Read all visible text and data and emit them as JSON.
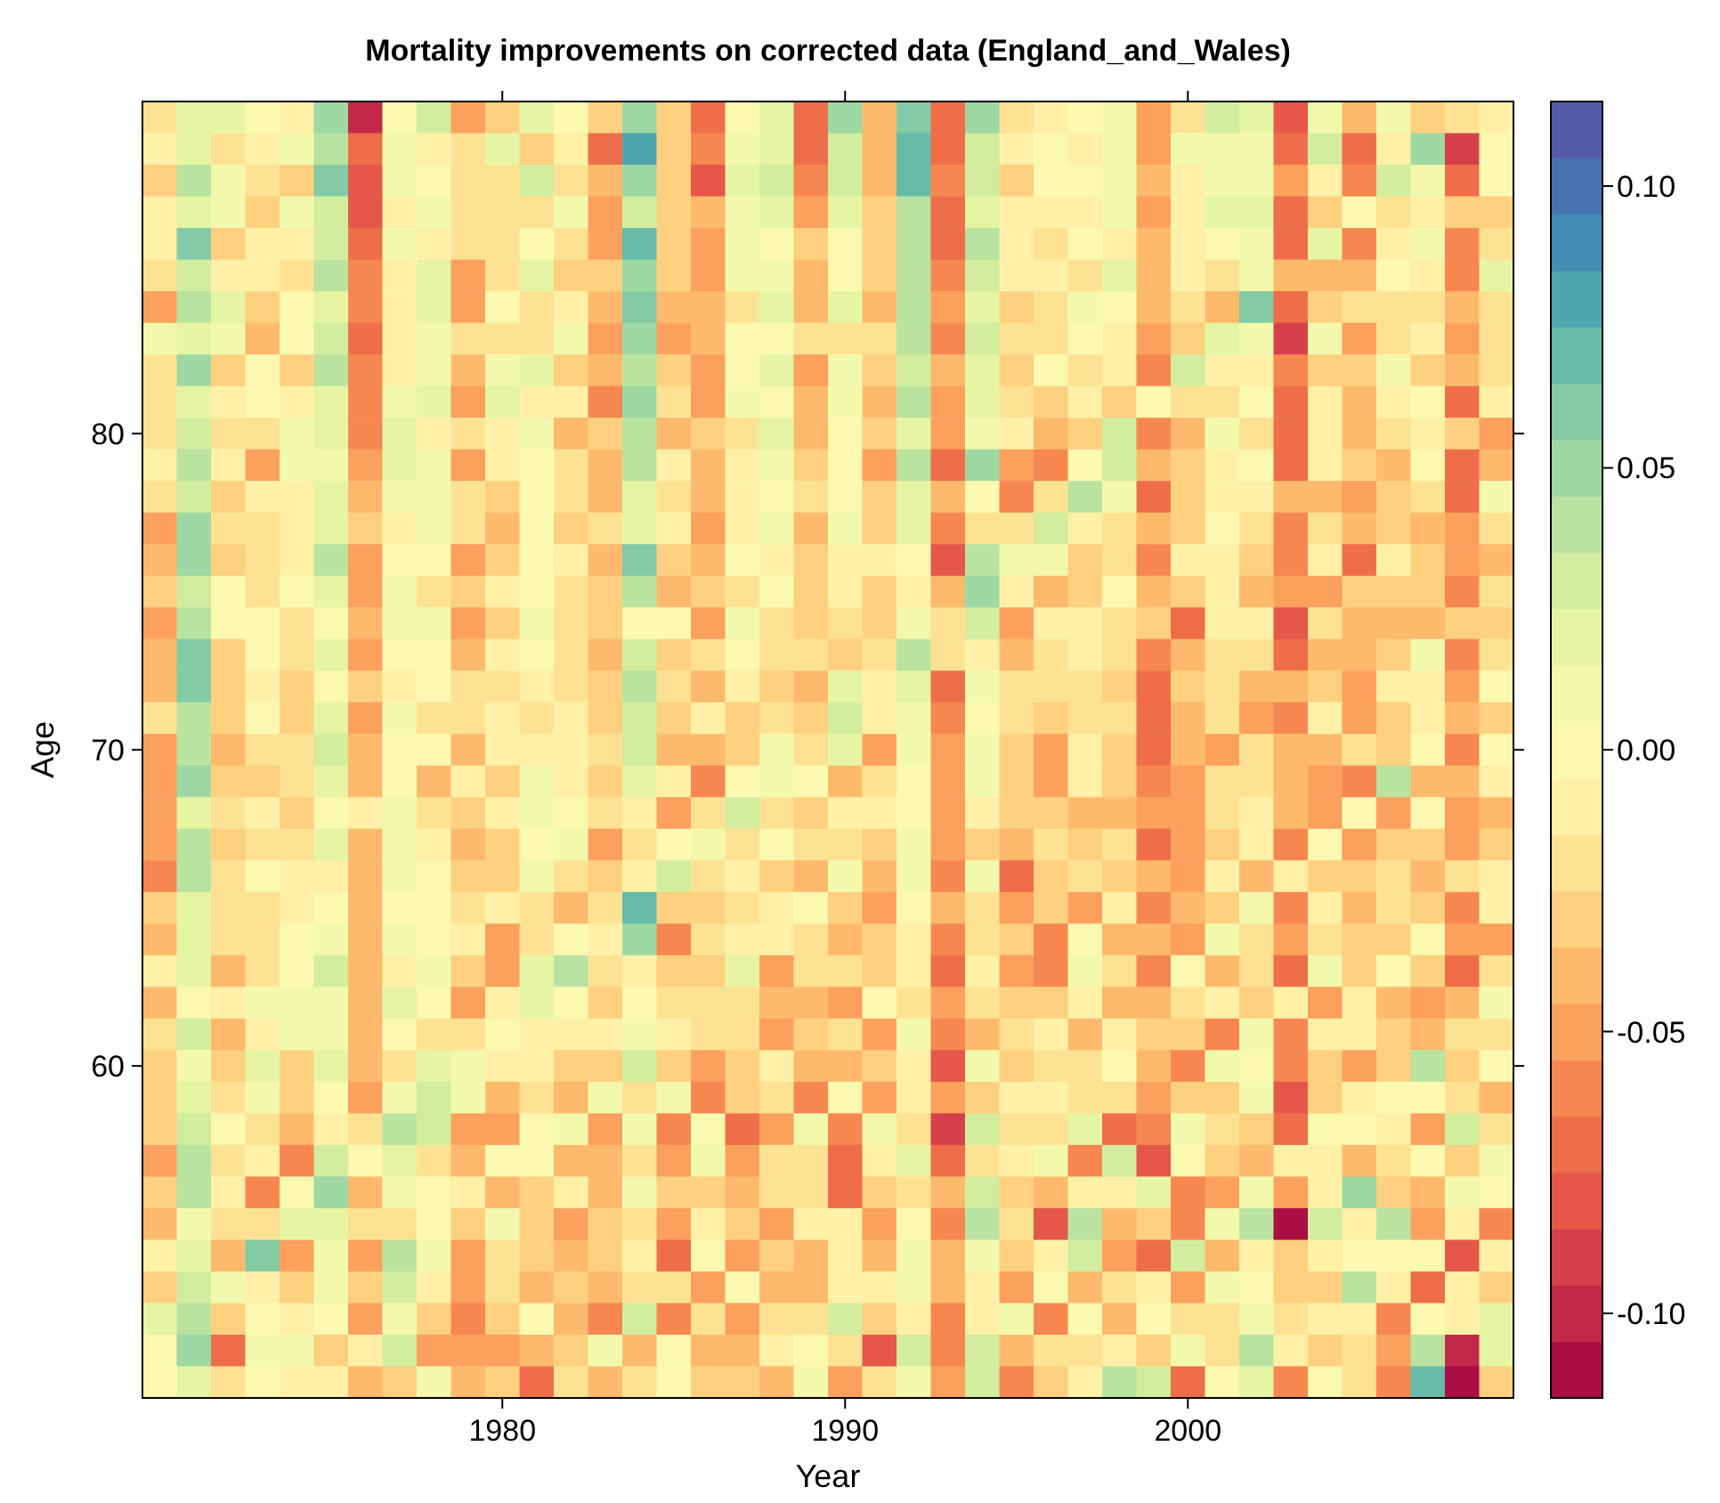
{
  "chart_data": {
    "type": "heatmap",
    "title": "Mortality improvements on corrected data (England_and_Wales)",
    "xlabel": "Year",
    "ylabel": "Age",
    "categories": [
      null,
      null,
      null,
      null,
      null,
      null,
      null,
      null,
      null,
      null,
      "1980",
      null,
      null,
      null,
      null,
      null,
      null,
      null,
      null,
      null,
      "1990",
      null,
      null,
      null,
      null,
      null,
      null,
      null,
      null,
      null,
      "2000",
      null,
      null,
      null,
      null,
      null,
      null,
      null,
      null,
      null
    ],
    "y_categories": [
      null,
      null,
      null,
      null,
      null,
      null,
      null,
      null,
      null,
      null,
      "80",
      null,
      null,
      null,
      null,
      null,
      null,
      null,
      null,
      null,
      "70",
      null,
      null,
      null,
      null,
      null,
      null,
      null,
      null,
      null,
      "60",
      null,
      null,
      null,
      null,
      null,
      null,
      null,
      null,
      null,
      null
    ],
    "clim": [
      -0.115,
      0.115
    ],
    "cticks": [
      {
        "value": -0.1,
        "label": "-0.10"
      },
      {
        "value": -0.05,
        "label": "-0.05"
      },
      {
        "value": 0,
        "label": "0.00"
      },
      {
        "value": 0.05,
        "label": "0.05"
      },
      {
        "value": 0.1,
        "label": "0.10"
      }
    ],
    "cells": [
      [
        -0.02,
        0.02,
        0.02,
        0.0,
        -0.01,
        0.05,
        -0.1,
        0.0,
        0.03,
        -0.05,
        -0.03,
        0.02,
        0.0,
        -0.03,
        0.05,
        -0.03,
        -0.07,
        0.0,
        0.02,
        -0.07,
        0.05,
        -0.04,
        0.06,
        -0.07,
        0.05,
        -0.02,
        -0.01,
        0.0,
        0.01,
        -0.05,
        -0.02,
        0.03,
        0.02,
        -0.08,
        0.01,
        -0.04,
        0.01,
        -0.03,
        -0.02,
        -0.01
      ],
      [
        -0.01,
        0.02,
        -0.02,
        -0.01,
        0.01,
        0.04,
        -0.07,
        0.01,
        -0.01,
        -0.02,
        0.02,
        -0.03,
        -0.01,
        -0.07,
        0.08,
        -0.03,
        -0.06,
        0.01,
        0.02,
        -0.07,
        0.03,
        -0.04,
        0.07,
        -0.07,
        0.03,
        -0.01,
        0.0,
        -0.01,
        0.01,
        -0.05,
        0.01,
        0.01,
        0.01,
        -0.07,
        0.03,
        -0.07,
        -0.01,
        0.05,
        -0.09,
        0.0
      ],
      [
        -0.03,
        0.04,
        0.01,
        -0.02,
        -0.03,
        0.06,
        -0.08,
        0.01,
        0.0,
        -0.02,
        -0.02,
        0.03,
        -0.02,
        -0.04,
        0.05,
        -0.03,
        -0.08,
        0.02,
        0.03,
        -0.06,
        0.03,
        -0.04,
        0.07,
        -0.06,
        0.03,
        -0.03,
        0.0,
        0.0,
        0.01,
        -0.04,
        -0.01,
        0.01,
        0.01,
        -0.05,
        -0.01,
        -0.06,
        0.03,
        0.01,
        -0.07,
        0.0
      ],
      [
        -0.01,
        0.02,
        0.01,
        -0.03,
        0.01,
        0.03,
        -0.08,
        -0.01,
        0.01,
        -0.02,
        -0.02,
        -0.02,
        0.01,
        -0.05,
        0.03,
        -0.03,
        -0.04,
        0.01,
        0.02,
        -0.05,
        0.02,
        -0.03,
        0.04,
        -0.07,
        0.02,
        -0.01,
        -0.01,
        -0.01,
        0.01,
        -0.05,
        -0.01,
        0.02,
        0.02,
        -0.07,
        -0.03,
        0.0,
        -0.02,
        -0.01,
        -0.03,
        -0.03
      ],
      [
        -0.01,
        0.06,
        -0.03,
        -0.01,
        -0.01,
        0.03,
        -0.07,
        0.01,
        -0.01,
        -0.02,
        -0.02,
        0.0,
        -0.02,
        -0.05,
        0.07,
        -0.03,
        -0.05,
        0.01,
        0.0,
        -0.03,
        0.0,
        -0.03,
        0.04,
        -0.07,
        0.04,
        -0.01,
        -0.02,
        0.0,
        -0.01,
        -0.04,
        -0.01,
        0.0,
        0.01,
        -0.07,
        0.02,
        -0.06,
        -0.01,
        0.01,
        -0.06,
        -0.02
      ],
      [
        -0.02,
        0.03,
        -0.01,
        -0.01,
        -0.02,
        0.04,
        -0.06,
        -0.01,
        0.02,
        -0.05,
        -0.02,
        0.02,
        -0.03,
        -0.03,
        0.05,
        -0.03,
        -0.05,
        0.01,
        0.01,
        -0.04,
        0.0,
        -0.03,
        0.04,
        -0.06,
        0.03,
        -0.01,
        -0.01,
        -0.02,
        0.02,
        -0.04,
        -0.01,
        -0.02,
        0.01,
        -0.04,
        -0.04,
        -0.04,
        0.0,
        -0.01,
        -0.06,
        0.02
      ],
      [
        -0.05,
        0.04,
        0.02,
        -0.03,
        0.0,
        0.02,
        -0.06,
        -0.01,
        0.02,
        -0.05,
        0.0,
        -0.02,
        -0.01,
        -0.04,
        0.06,
        -0.04,
        -0.04,
        -0.02,
        0.02,
        -0.04,
        0.02,
        -0.04,
        0.04,
        -0.05,
        0.02,
        -0.03,
        -0.02,
        0.01,
        0.0,
        -0.04,
        -0.02,
        -0.04,
        0.06,
        -0.07,
        -0.03,
        -0.02,
        -0.02,
        -0.02,
        -0.04,
        -0.02
      ],
      [
        0.01,
        0.02,
        0.01,
        -0.04,
        0.0,
        0.03,
        -0.07,
        -0.01,
        0.01,
        -0.02,
        -0.02,
        -0.02,
        0.01,
        -0.05,
        0.05,
        -0.05,
        -0.04,
        0.0,
        0.0,
        -0.02,
        -0.02,
        -0.02,
        0.04,
        -0.06,
        0.03,
        -0.02,
        -0.02,
        0.0,
        -0.01,
        -0.05,
        -0.03,
        0.02,
        0.01,
        -0.09,
        0.01,
        -0.05,
        -0.02,
        -0.01,
        -0.05,
        -0.02
      ],
      [
        -0.02,
        0.05,
        -0.03,
        0.0,
        -0.03,
        0.04,
        -0.06,
        -0.01,
        0.01,
        -0.04,
        0.01,
        0.02,
        -0.03,
        -0.04,
        0.04,
        -0.03,
        -0.05,
        0.0,
        0.02,
        -0.05,
        0.01,
        -0.03,
        0.03,
        -0.04,
        0.02,
        -0.03,
        0.0,
        -0.02,
        -0.01,
        -0.06,
        0.03,
        -0.01,
        -0.01,
        -0.06,
        -0.03,
        -0.03,
        0.01,
        -0.03,
        -0.04,
        -0.02
      ],
      [
        -0.02,
        0.02,
        -0.01,
        0.0,
        -0.01,
        0.02,
        -0.06,
        0.01,
        0.02,
        -0.05,
        0.02,
        -0.01,
        -0.01,
        -0.06,
        0.05,
        -0.02,
        -0.05,
        0.01,
        0.0,
        -0.04,
        0.01,
        -0.04,
        0.04,
        -0.05,
        0.02,
        -0.02,
        -0.03,
        -0.01,
        -0.03,
        0.0,
        -0.02,
        -0.02,
        0.0,
        -0.07,
        -0.01,
        -0.04,
        -0.01,
        0.0,
        -0.07,
        -0.01
      ],
      [
        -0.02,
        0.03,
        -0.02,
        -0.02,
        0.01,
        0.02,
        -0.06,
        0.02,
        -0.01,
        -0.02,
        -0.01,
        0.01,
        -0.04,
        -0.03,
        0.04,
        -0.04,
        -0.03,
        -0.02,
        0.02,
        -0.04,
        0.0,
        -0.03,
        0.02,
        -0.05,
        0.01,
        -0.01,
        -0.04,
        -0.03,
        0.03,
        -0.06,
        -0.04,
        0.01,
        -0.02,
        -0.07,
        -0.01,
        -0.04,
        -0.02,
        -0.01,
        -0.03,
        -0.05
      ],
      [
        -0.01,
        0.04,
        -0.01,
        -0.05,
        0.01,
        0.01,
        -0.05,
        0.02,
        0.01,
        -0.05,
        -0.01,
        0.0,
        -0.02,
        -0.04,
        0.04,
        -0.01,
        -0.04,
        -0.01,
        0.01,
        -0.03,
        0.0,
        -0.05,
        0.04,
        -0.07,
        0.05,
        -0.05,
        -0.06,
        0.0,
        0.03,
        -0.04,
        -0.03,
        -0.01,
        0.0,
        -0.07,
        -0.01,
        -0.03,
        -0.04,
        0.0,
        -0.07,
        -0.04
      ],
      [
        -0.02,
        0.03,
        -0.03,
        -0.01,
        -0.01,
        0.02,
        -0.04,
        0.01,
        0.01,
        -0.02,
        -0.03,
        0.0,
        -0.02,
        -0.04,
        0.02,
        -0.02,
        -0.04,
        -0.01,
        0.0,
        -0.02,
        0.0,
        -0.03,
        0.02,
        -0.04,
        0.0,
        -0.06,
        -0.02,
        0.04,
        0.01,
        -0.07,
        -0.03,
        -0.01,
        -0.01,
        -0.04,
        -0.04,
        -0.05,
        -0.03,
        -0.02,
        -0.07,
        0.01
      ],
      [
        -0.05,
        0.05,
        -0.02,
        -0.02,
        -0.01,
        0.02,
        -0.03,
        -0.01,
        0.01,
        -0.02,
        -0.04,
        0.0,
        -0.03,
        -0.02,
        0.02,
        -0.01,
        -0.05,
        -0.01,
        0.01,
        -0.04,
        0.01,
        -0.03,
        0.02,
        -0.06,
        -0.02,
        -0.02,
        0.03,
        -0.01,
        -0.02,
        -0.04,
        -0.03,
        0.0,
        -0.02,
        -0.06,
        -0.02,
        -0.04,
        -0.03,
        -0.04,
        -0.05,
        -0.02
      ],
      [
        -0.04,
        0.05,
        -0.03,
        -0.02,
        -0.01,
        0.04,
        -0.05,
        0.0,
        0.0,
        -0.05,
        -0.03,
        0.0,
        -0.01,
        -0.04,
        0.06,
        -0.03,
        -0.04,
        0.0,
        -0.01,
        -0.03,
        -0.01,
        -0.01,
        0.0,
        -0.08,
        0.04,
        0.01,
        0.01,
        -0.03,
        -0.02,
        -0.06,
        -0.01,
        -0.01,
        -0.03,
        -0.06,
        -0.01,
        -0.07,
        -0.01,
        -0.03,
        -0.05,
        -0.04
      ],
      [
        -0.03,
        0.03,
        0.0,
        -0.02,
        0.0,
        0.02,
        -0.05,
        0.01,
        -0.02,
        -0.03,
        -0.01,
        0.0,
        -0.02,
        -0.03,
        0.04,
        -0.04,
        -0.03,
        -0.02,
        0.0,
        -0.03,
        -0.01,
        -0.03,
        -0.01,
        -0.04,
        0.05,
        -0.01,
        -0.04,
        -0.03,
        0.0,
        -0.04,
        -0.03,
        -0.01,
        -0.04,
        -0.05,
        -0.05,
        -0.03,
        -0.03,
        -0.03,
        -0.06,
        -0.02
      ],
      [
        -0.05,
        0.04,
        0.0,
        0.0,
        -0.02,
        0.0,
        -0.04,
        0.01,
        0.01,
        -0.05,
        -0.03,
        0.01,
        -0.02,
        -0.03,
        0.0,
        0.0,
        -0.05,
        0.01,
        -0.02,
        -0.03,
        -0.02,
        -0.03,
        0.01,
        -0.02,
        0.03,
        -0.05,
        -0.01,
        -0.01,
        -0.02,
        -0.03,
        -0.07,
        -0.01,
        -0.01,
        -0.08,
        -0.02,
        -0.04,
        -0.04,
        -0.04,
        -0.03,
        -0.03
      ],
      [
        -0.04,
        0.06,
        -0.03,
        0.0,
        -0.02,
        0.02,
        -0.05,
        0.0,
        0.0,
        -0.04,
        -0.01,
        0.0,
        -0.02,
        -0.04,
        0.03,
        -0.03,
        -0.02,
        0.0,
        -0.02,
        -0.02,
        -0.03,
        -0.02,
        0.04,
        -0.02,
        -0.01,
        -0.04,
        -0.02,
        -0.01,
        -0.02,
        -0.06,
        -0.04,
        -0.02,
        -0.02,
        -0.07,
        -0.04,
        -0.04,
        -0.03,
        0.01,
        -0.06,
        -0.02
      ],
      [
        -0.04,
        0.06,
        -0.03,
        -0.01,
        -0.03,
        0.0,
        -0.03,
        -0.01,
        0.0,
        -0.02,
        -0.02,
        -0.01,
        -0.02,
        -0.03,
        0.04,
        -0.02,
        -0.04,
        -0.01,
        -0.03,
        -0.04,
        0.02,
        -0.01,
        0.02,
        -0.07,
        0.01,
        -0.02,
        -0.02,
        -0.02,
        -0.03,
        -0.07,
        -0.03,
        -0.02,
        -0.04,
        -0.04,
        -0.03,
        -0.05,
        -0.01,
        -0.01,
        -0.05,
        0.0
      ],
      [
        -0.02,
        0.04,
        -0.03,
        0.0,
        -0.03,
        0.02,
        -0.05,
        0.01,
        -0.02,
        -0.02,
        -0.01,
        -0.02,
        -0.01,
        -0.03,
        0.03,
        -0.03,
        -0.01,
        -0.03,
        -0.02,
        -0.03,
        0.03,
        -0.01,
        0.01,
        -0.06,
        0.0,
        -0.02,
        -0.03,
        -0.02,
        -0.02,
        -0.07,
        -0.04,
        -0.02,
        -0.05,
        -0.06,
        -0.01,
        -0.05,
        -0.03,
        -0.01,
        -0.04,
        -0.03
      ],
      [
        -0.05,
        0.04,
        -0.04,
        -0.02,
        -0.02,
        0.03,
        -0.04,
        0.0,
        0.0,
        -0.04,
        -0.01,
        -0.01,
        -0.01,
        -0.02,
        0.03,
        -0.04,
        -0.04,
        -0.03,
        0.01,
        -0.02,
        0.02,
        -0.05,
        0.01,
        -0.05,
        0.01,
        -0.03,
        -0.05,
        -0.01,
        -0.03,
        -0.07,
        -0.04,
        -0.05,
        -0.02,
        -0.04,
        -0.04,
        -0.02,
        -0.03,
        0.0,
        -0.06,
        0.0
      ],
      [
        -0.05,
        0.05,
        -0.03,
        -0.03,
        -0.02,
        0.02,
        -0.04,
        0.0,
        -0.04,
        -0.01,
        -0.03,
        0.01,
        -0.01,
        -0.03,
        0.02,
        -0.01,
        -0.06,
        0.0,
        0.01,
        0.0,
        -0.04,
        -0.02,
        0.0,
        -0.05,
        0.01,
        -0.03,
        -0.05,
        -0.01,
        -0.03,
        -0.06,
        -0.05,
        -0.02,
        -0.02,
        -0.04,
        -0.05,
        -0.06,
        0.04,
        -0.04,
        -0.04,
        -0.01
      ],
      [
        -0.05,
        0.02,
        -0.02,
        -0.01,
        -0.03,
        0.0,
        -0.01,
        0.01,
        -0.02,
        -0.03,
        -0.01,
        0.01,
        0.0,
        -0.02,
        -0.01,
        -0.05,
        -0.02,
        0.03,
        -0.02,
        -0.03,
        -0.01,
        -0.01,
        0.0,
        -0.05,
        -0.01,
        -0.03,
        -0.03,
        -0.04,
        -0.04,
        -0.05,
        -0.05,
        -0.02,
        -0.01,
        -0.04,
        -0.05,
        0.0,
        -0.05,
        0.0,
        -0.05,
        -0.04
      ],
      [
        -0.05,
        0.04,
        -0.03,
        -0.02,
        -0.02,
        0.02,
        -0.04,
        0.01,
        -0.01,
        -0.04,
        -0.03,
        0.0,
        0.01,
        -0.05,
        -0.02,
        0.0,
        0.01,
        -0.02,
        0.0,
        -0.02,
        -0.02,
        -0.03,
        0.01,
        -0.05,
        -0.03,
        -0.04,
        -0.02,
        -0.03,
        -0.02,
        -0.07,
        -0.05,
        -0.03,
        -0.01,
        -0.06,
        0.0,
        -0.05,
        -0.03,
        -0.03,
        -0.05,
        -0.03
      ],
      [
        -0.06,
        0.04,
        -0.02,
        0.0,
        -0.01,
        -0.01,
        -0.04,
        0.01,
        0.0,
        -0.03,
        -0.03,
        0.01,
        -0.02,
        -0.03,
        -0.01,
        0.03,
        -0.02,
        -0.01,
        -0.03,
        -0.04,
        0.01,
        -0.04,
        0.01,
        -0.06,
        0.01,
        -0.07,
        -0.03,
        -0.02,
        -0.03,
        -0.04,
        -0.05,
        -0.01,
        -0.04,
        -0.01,
        -0.03,
        -0.03,
        -0.02,
        -0.04,
        -0.02,
        -0.01
      ],
      [
        -0.03,
        0.02,
        -0.02,
        -0.02,
        -0.01,
        0.0,
        -0.04,
        0.0,
        0.0,
        -0.02,
        -0.01,
        -0.02,
        -0.04,
        -0.02,
        0.07,
        -0.03,
        -0.03,
        -0.02,
        -0.01,
        0.0,
        -0.03,
        -0.05,
        0.0,
        -0.04,
        -0.02,
        -0.05,
        -0.03,
        -0.05,
        -0.01,
        -0.06,
        -0.04,
        -0.03,
        0.01,
        -0.06,
        -0.01,
        -0.04,
        -0.02,
        -0.03,
        -0.06,
        -0.01
      ],
      [
        -0.04,
        0.02,
        -0.02,
        -0.02,
        0.0,
        0.01,
        -0.04,
        0.01,
        0.0,
        -0.01,
        -0.05,
        -0.02,
        0.0,
        -0.01,
        0.05,
        -0.06,
        -0.02,
        -0.01,
        -0.01,
        -0.02,
        -0.04,
        -0.03,
        -0.01,
        -0.06,
        -0.02,
        -0.03,
        -0.06,
        0.0,
        -0.04,
        -0.04,
        -0.05,
        0.01,
        -0.02,
        -0.05,
        -0.02,
        -0.03,
        -0.03,
        0.0,
        -0.05,
        -0.05
      ],
      [
        -0.01,
        0.02,
        -0.04,
        -0.02,
        0.0,
        0.03,
        -0.04,
        -0.01,
        0.01,
        -0.03,
        -0.05,
        0.02,
        0.04,
        -0.02,
        -0.01,
        -0.03,
        -0.03,
        0.02,
        -0.05,
        -0.02,
        -0.02,
        -0.03,
        -0.01,
        -0.07,
        -0.01,
        -0.05,
        -0.06,
        0.01,
        -0.02,
        -0.06,
        0.0,
        -0.04,
        -0.02,
        -0.07,
        0.01,
        -0.03,
        0.0,
        -0.03,
        -0.07,
        -0.02
      ],
      [
        -0.04,
        0.0,
        -0.01,
        0.01,
        0.01,
        0.01,
        -0.04,
        0.02,
        0.0,
        -0.05,
        -0.01,
        0.02,
        0.0,
        -0.03,
        0.0,
        -0.02,
        -0.02,
        -0.02,
        -0.04,
        -0.04,
        -0.05,
        0.0,
        -0.02,
        -0.05,
        -0.02,
        -0.03,
        -0.03,
        -0.01,
        -0.04,
        -0.04,
        -0.02,
        -0.01,
        -0.03,
        -0.01,
        -0.05,
        -0.01,
        -0.04,
        -0.05,
        -0.04,
        0.01
      ],
      [
        -0.02,
        0.03,
        -0.04,
        -0.01,
        0.01,
        0.01,
        -0.04,
        0.0,
        -0.02,
        -0.02,
        0.0,
        -0.01,
        -0.01,
        -0.01,
        0.01,
        -0.01,
        -0.02,
        -0.02,
        -0.05,
        -0.03,
        -0.02,
        -0.05,
        0.01,
        -0.06,
        -0.04,
        -0.02,
        -0.01,
        -0.04,
        -0.01,
        -0.03,
        -0.03,
        -0.06,
        0.01,
        -0.06,
        -0.01,
        -0.01,
        -0.03,
        -0.04,
        -0.02,
        -0.02
      ],
      [
        -0.03,
        0.01,
        -0.03,
        0.02,
        -0.03,
        0.02,
        -0.04,
        -0.02,
        0.02,
        0.01,
        -0.01,
        -0.01,
        -0.03,
        -0.03,
        0.03,
        -0.03,
        -0.05,
        -0.03,
        -0.01,
        -0.04,
        -0.04,
        -0.03,
        -0.01,
        -0.08,
        0.01,
        -0.03,
        -0.02,
        -0.02,
        0.0,
        -0.04,
        -0.06,
        0.01,
        0.0,
        -0.06,
        -0.03,
        -0.05,
        -0.03,
        0.04,
        -0.03,
        0.0
      ],
      [
        -0.03,
        0.02,
        -0.02,
        0.01,
        -0.03,
        0.0,
        -0.05,
        0.01,
        0.03,
        0.01,
        -0.04,
        -0.02,
        -0.04,
        0.01,
        -0.02,
        0.01,
        -0.06,
        -0.03,
        -0.02,
        -0.06,
        0.0,
        -0.05,
        -0.01,
        -0.05,
        -0.03,
        -0.01,
        -0.01,
        -0.02,
        -0.02,
        -0.05,
        -0.03,
        -0.03,
        0.01,
        -0.08,
        -0.03,
        -0.01,
        0.0,
        0.0,
        -0.02,
        -0.04
      ],
      [
        -0.03,
        0.03,
        0.0,
        -0.02,
        -0.04,
        -0.01,
        -0.02,
        0.04,
        0.03,
        -0.05,
        -0.05,
        0.0,
        0.01,
        -0.05,
        0.01,
        -0.06,
        0.0,
        -0.07,
        -0.05,
        0.01,
        -0.06,
        0.01,
        -0.02,
        -0.09,
        0.03,
        -0.02,
        -0.02,
        0.02,
        -0.07,
        -0.06,
        0.01,
        -0.02,
        -0.03,
        -0.07,
        0.0,
        0.0,
        -0.01,
        -0.05,
        0.03,
        -0.02
      ],
      [
        -0.05,
        0.04,
        -0.02,
        -0.01,
        -0.06,
        0.03,
        0.0,
        0.02,
        -0.02,
        -0.04,
        0.0,
        0.0,
        -0.04,
        -0.04,
        -0.02,
        -0.05,
        0.01,
        -0.05,
        -0.02,
        -0.02,
        -0.07,
        -0.01,
        0.02,
        -0.07,
        -0.02,
        -0.01,
        0.01,
        -0.06,
        0.03,
        -0.08,
        0.0,
        -0.03,
        -0.04,
        -0.01,
        -0.01,
        -0.04,
        -0.02,
        0.0,
        -0.03,
        0.01
      ],
      [
        -0.03,
        0.04,
        -0.01,
        -0.06,
        0.0,
        0.05,
        -0.04,
        0.01,
        0.0,
        -0.01,
        -0.04,
        -0.03,
        -0.01,
        -0.04,
        0.01,
        -0.03,
        -0.03,
        -0.04,
        -0.02,
        -0.02,
        -0.07,
        -0.03,
        -0.02,
        -0.04,
        0.03,
        -0.03,
        -0.04,
        -0.01,
        -0.01,
        0.02,
        -0.06,
        -0.05,
        0.01,
        -0.05,
        -0.01,
        0.05,
        -0.03,
        -0.04,
        0.01,
        0.0
      ],
      [
        -0.04,
        0.01,
        -0.02,
        -0.02,
        0.02,
        0.02,
        -0.02,
        -0.02,
        0.0,
        -0.03,
        0.01,
        -0.03,
        -0.05,
        -0.03,
        -0.02,
        -0.05,
        -0.01,
        -0.03,
        -0.05,
        -0.01,
        -0.01,
        -0.05,
        0.0,
        -0.06,
        0.04,
        -0.02,
        -0.08,
        0.04,
        -0.04,
        -0.03,
        -0.06,
        0.01,
        0.04,
        -0.11,
        0.03,
        -0.01,
        0.04,
        -0.05,
        -0.01,
        -0.06
      ],
      [
        -0.01,
        0.02,
        -0.04,
        0.06,
        -0.05,
        0.01,
        -0.05,
        0.04,
        0.01,
        -0.05,
        -0.02,
        -0.03,
        -0.04,
        -0.03,
        -0.01,
        -0.07,
        0.0,
        -0.05,
        -0.03,
        -0.04,
        -0.01,
        -0.04,
        0.01,
        -0.04,
        0.01,
        -0.03,
        -0.01,
        0.03,
        -0.05,
        -0.07,
        0.03,
        -0.04,
        -0.01,
        -0.03,
        -0.01,
        0.0,
        0.0,
        0.0,
        -0.08,
        -0.01
      ],
      [
        -0.03,
        0.03,
        0.01,
        -0.01,
        -0.03,
        0.01,
        -0.03,
        0.03,
        -0.01,
        -0.05,
        -0.02,
        -0.04,
        -0.03,
        -0.04,
        -0.02,
        -0.02,
        -0.05,
        0.0,
        -0.04,
        -0.04,
        -0.01,
        -0.01,
        0.01,
        -0.04,
        -0.01,
        -0.05,
        0.0,
        -0.04,
        -0.02,
        -0.01,
        -0.05,
        0.01,
        0.0,
        -0.03,
        -0.03,
        0.04,
        -0.01,
        -0.07,
        -0.01,
        -0.03
      ],
      [
        0.02,
        0.04,
        -0.03,
        0.0,
        -0.01,
        0.0,
        -0.05,
        0.01,
        -0.03,
        -0.06,
        -0.03,
        0.0,
        -0.04,
        -0.06,
        0.03,
        -0.06,
        -0.02,
        -0.05,
        -0.02,
        -0.02,
        0.03,
        -0.03,
        -0.01,
        -0.06,
        -0.01,
        0.01,
        -0.06,
        0.0,
        -0.04,
        0.0,
        -0.02,
        -0.02,
        0.01,
        -0.02,
        -0.01,
        -0.01,
        -0.06,
        0.0,
        -0.01,
        0.02
      ],
      [
        0.0,
        0.05,
        -0.07,
        0.01,
        0.01,
        -0.03,
        -0.01,
        0.03,
        -0.05,
        -0.05,
        -0.05,
        -0.04,
        -0.03,
        0.01,
        -0.04,
        0.0,
        -0.04,
        -0.04,
        -0.01,
        0.0,
        -0.02,
        -0.08,
        0.03,
        -0.06,
        0.03,
        -0.04,
        -0.02,
        -0.02,
        -0.01,
        -0.03,
        0.01,
        -0.02,
        0.04,
        -0.01,
        -0.03,
        -0.02,
        -0.05,
        0.04,
        -0.1,
        0.02
      ],
      [
        0.0,
        0.02,
        -0.02,
        0.0,
        -0.01,
        -0.01,
        -0.04,
        -0.03,
        0.01,
        -0.04,
        -0.03,
        -0.07,
        -0.02,
        -0.04,
        -0.02,
        0.0,
        -0.03,
        -0.03,
        -0.04,
        0.01,
        -0.05,
        -0.02,
        0.01,
        -0.05,
        0.03,
        -0.06,
        -0.03,
        -0.01,
        0.04,
        0.03,
        -0.07,
        0.0,
        0.02,
        -0.06,
        0.0,
        -0.02,
        -0.06,
        0.07,
        -0.11,
        -0.03
      ]
    ]
  }
}
